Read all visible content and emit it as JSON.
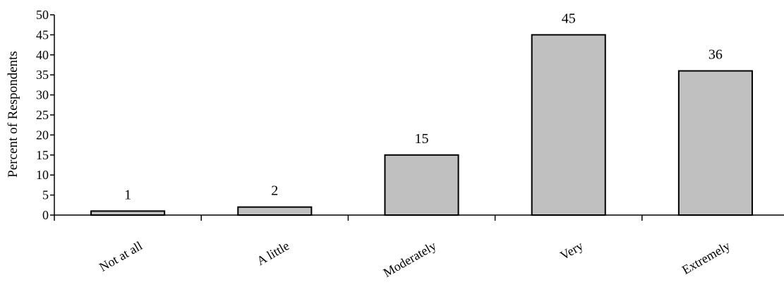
{
  "chart_data": {
    "type": "bar",
    "categories": [
      "Not at all",
      "A little",
      "Moderately",
      "Very",
      "Extremely"
    ],
    "values": [
      1,
      2,
      15,
      45,
      36
    ],
    "data_labels": [
      "1",
      "2",
      "15",
      "45",
      "36"
    ],
    "title": "",
    "xlabel": "",
    "ylabel": "Percent of Respondents",
    "ylim": [
      0,
      50
    ],
    "yticks": [
      0,
      5,
      10,
      15,
      20,
      25,
      30,
      35,
      40,
      45,
      50
    ],
    "grid": false,
    "legend": "none",
    "bar_color": "#c0c0c0",
    "edge_color": "#000000"
  }
}
